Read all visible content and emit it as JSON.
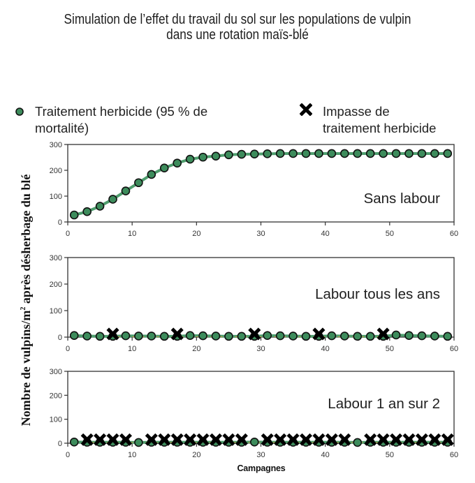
{
  "title": {
    "line1": "Simulation de l’effet du travail du sol sur les populations de vulpin",
    "line2": "dans une rotation maïs-blé"
  },
  "legend": {
    "treatment": {
      "line1": "Traitement herbicide (95 % de",
      "line2": "mortalité)",
      "icon": "green-circle-marker"
    },
    "impasse": {
      "line1": "Impasse de",
      "line2": "traitement herbicide",
      "icon": "black-cross-marker"
    }
  },
  "axes": {
    "ylabel_main": "Nombre de vulpins/m",
    "ylabel_sup": "2",
    "ylabel_rest": " après désherbage du blé",
    "xlabel": "Campagnes"
  },
  "colors": {
    "treatment_fill": "#3d8c5c",
    "treatment_line": "#4f9e6e",
    "marker_outline": "#111111",
    "impasse_marker": "#000000",
    "impasse_line": "#e8902a",
    "axis": "#333333"
  },
  "chart_data": [
    {
      "type": "line",
      "title": "Sans labour",
      "xlabel": "Campagnes",
      "ylabel": "Nombre de vulpins/m² après désherbage du blé",
      "xlim": [
        0,
        60
      ],
      "ylim": [
        0,
        300
      ],
      "xticks": [
        0,
        10,
        20,
        30,
        40,
        50,
        60
      ],
      "yticks": [
        0,
        100,
        200,
        300
      ],
      "grid": false,
      "legend_position": "top",
      "series": [
        {
          "name": "Traitement herbicide (95 % de mortalité)",
          "marker": "circle",
          "x": [
            1,
            3,
            5,
            7,
            9,
            11,
            13,
            15,
            17,
            19,
            21,
            23,
            25,
            27,
            29,
            31,
            33,
            35,
            37,
            39,
            41,
            43,
            45,
            47,
            49,
            51,
            53,
            55,
            57,
            59
          ],
          "values": [
            27,
            40,
            61,
            88,
            120,
            152,
            184,
            209,
            228,
            243,
            251,
            255,
            260,
            262,
            263,
            264,
            265,
            265,
            265,
            265,
            265,
            265,
            265,
            265,
            265,
            265,
            265,
            265,
            265,
            265
          ]
        },
        {
          "name": "Impasse de traitement herbicide",
          "marker": "cross",
          "x": [],
          "values": []
        }
      ]
    },
    {
      "type": "line",
      "title": "Labour tous les ans",
      "xlabel": "Campagnes",
      "ylabel": "Nombre de vulpins/m² après désherbage du blé",
      "xlim": [
        0,
        60
      ],
      "ylim": [
        0,
        300
      ],
      "xticks": [
        0,
        10,
        20,
        30,
        40,
        50,
        60
      ],
      "yticks": [
        0,
        100,
        200,
        300
      ],
      "grid": false,
      "series": [
        {
          "name": "Traitement herbicide (95 % de mortalité)",
          "marker": "circle",
          "x": [
            1,
            3,
            5,
            7,
            9,
            11,
            13,
            15,
            17,
            19,
            21,
            23,
            25,
            27,
            29,
            31,
            33,
            35,
            37,
            39,
            41,
            43,
            45,
            47,
            49,
            51,
            53,
            55,
            57,
            59
          ],
          "values": [
            6,
            4,
            3,
            3,
            5,
            4,
            4,
            3,
            3,
            6,
            5,
            4,
            3,
            3,
            3,
            6,
            5,
            4,
            3,
            3,
            5,
            4,
            3,
            3,
            3,
            8,
            6,
            5,
            4,
            3
          ]
        },
        {
          "name": "Impasse de traitement herbicide",
          "marker": "cross",
          "x": [
            7,
            17,
            29,
            39,
            49
          ],
          "values": [
            12,
            12,
            12,
            12,
            12
          ]
        }
      ]
    },
    {
      "type": "line",
      "title": "Labour 1 an sur 2",
      "xlabel": "Campagnes",
      "ylabel": "Nombre de vulpins/m² après désherbage du blé",
      "xlim": [
        0,
        60
      ],
      "ylim": [
        0,
        300
      ],
      "xticks": [
        0,
        10,
        20,
        30,
        40,
        50,
        60
      ],
      "yticks": [
        0,
        100,
        200,
        300
      ],
      "grid": false,
      "series": [
        {
          "name": "Traitement herbicide (95 % de mortalité)",
          "marker": "circle",
          "x": [
            1,
            3,
            5,
            7,
            9,
            11,
            13,
            15,
            17,
            19,
            21,
            23,
            25,
            27,
            29,
            31,
            33,
            35,
            37,
            39,
            41,
            43,
            45,
            47,
            49,
            51,
            53,
            55,
            57,
            59
          ],
          "values": [
            5,
            4,
            4,
            4,
            4,
            3,
            4,
            4,
            4,
            4,
            4,
            4,
            4,
            4,
            5,
            4,
            4,
            4,
            4,
            4,
            4,
            4,
            3,
            4,
            4,
            4,
            4,
            4,
            4,
            4
          ]
        },
        {
          "name": "Impasse de traitement herbicide",
          "marker": "cross",
          "x": [
            3,
            5,
            7,
            9,
            13,
            15,
            17,
            19,
            21,
            23,
            25,
            27,
            31,
            33,
            35,
            37,
            39,
            41,
            43,
            47,
            49,
            51,
            53,
            55,
            57,
            59
          ],
          "values": [
            15,
            15,
            15,
            15,
            15,
            15,
            15,
            15,
            15,
            15,
            15,
            15,
            15,
            15,
            15,
            15,
            15,
            15,
            15,
            15,
            15,
            15,
            15,
            15,
            15,
            15
          ]
        }
      ]
    }
  ]
}
